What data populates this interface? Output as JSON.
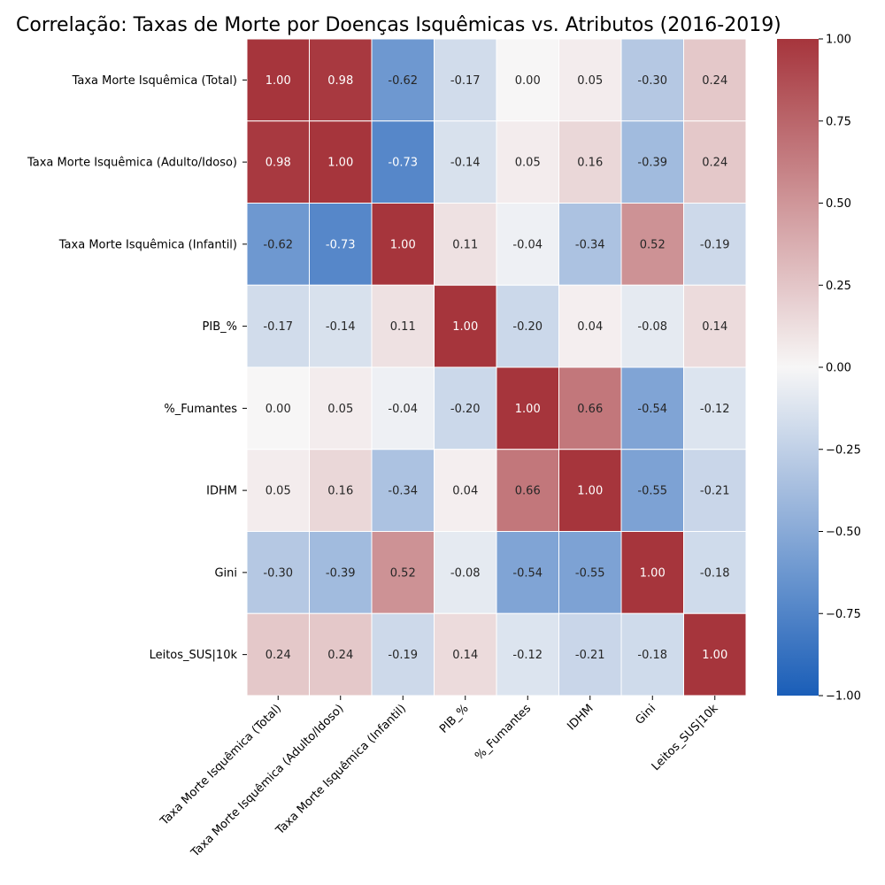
{
  "chart_data": {
    "type": "heatmap",
    "title": "Correlação: Taxas de Morte por Doenças Isquêmicas vs. Atributos (2016-2019)",
    "row_labels": [
      "Taxa Morte Isquêmica (Total)",
      "Taxa Morte Isquêmica (Adulto/Idoso)",
      "Taxa Morte Isquêmica (Infantil)",
      "PIB_%",
      "%_Fumantes",
      "IDHM",
      "Gini",
      "Leitos_SUS|10k"
    ],
    "col_labels": [
      "Taxa Morte Isquêmica (Total)",
      "Taxa Morte Isquêmica (Adulto/Idoso)",
      "Taxa Morte Isquêmica (Infantil)",
      "PIB_%",
      "%_Fumantes",
      "IDHM",
      "Gini",
      "Leitos_SUS|10k"
    ],
    "values": [
      [
        1.0,
        0.98,
        -0.62,
        -0.17,
        0.0,
        0.05,
        -0.3,
        0.24
      ],
      [
        0.98,
        1.0,
        -0.73,
        -0.14,
        0.05,
        0.16,
        -0.39,
        0.24
      ],
      [
        -0.62,
        -0.73,
        1.0,
        0.11,
        -0.04,
        -0.34,
        0.52,
        -0.19
      ],
      [
        -0.17,
        -0.14,
        0.11,
        1.0,
        -0.2,
        0.04,
        -0.08,
        0.14
      ],
      [
        0.0,
        0.05,
        -0.04,
        -0.2,
        1.0,
        0.66,
        -0.54,
        -0.12
      ],
      [
        0.05,
        0.16,
        -0.34,
        0.04,
        0.66,
        1.0,
        -0.55,
        -0.21
      ],
      [
        -0.3,
        -0.39,
        0.52,
        -0.08,
        -0.54,
        -0.55,
        1.0,
        -0.18
      ],
      [
        0.24,
        0.24,
        -0.19,
        0.14,
        -0.12,
        -0.21,
        -0.18,
        1.0
      ]
    ],
    "colorbar": {
      "range": [
        -1.0,
        1.0
      ],
      "ticks": [
        "1.00",
        "0.75",
        "0.50",
        "0.25",
        "0.00",
        "−0.25",
        "−0.50",
        "−0.75",
        "−1.00"
      ]
    },
    "colormap": {
      "low": "#1a5eb8",
      "mid": "#f7f6f6",
      "high": "#a6353c"
    }
  }
}
